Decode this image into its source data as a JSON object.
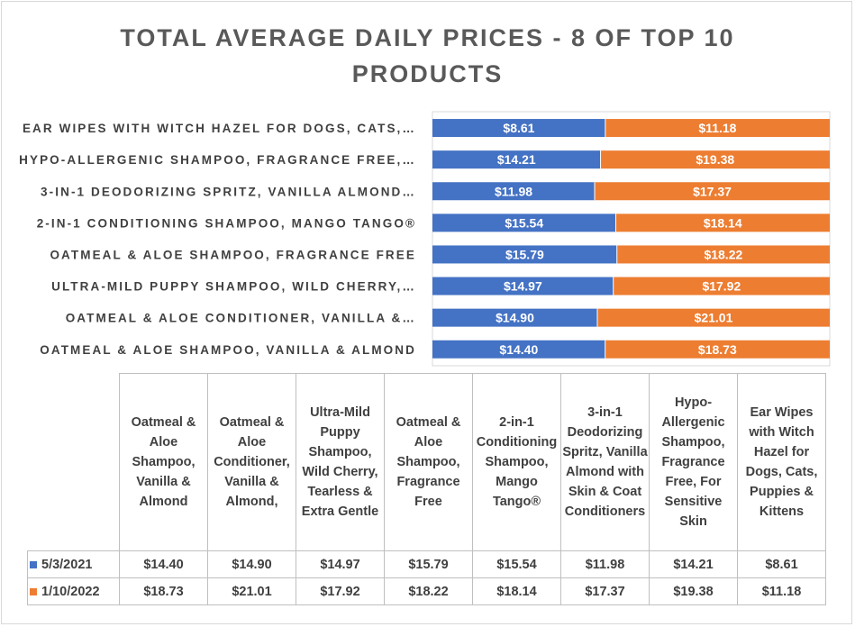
{
  "chart_data": {
    "type": "bar",
    "stacked": true,
    "orientation": "horizontal",
    "title": "TOTAL AVERAGE DAILY PRICES - 8 OF TOP 10 PRODUCTS",
    "axis_labels": [
      "EAR WIPES WITH WITCH HAZEL FOR DOGS, CATS,…",
      "HYPO-ALLERGENIC SHAMPOO, FRAGRANCE FREE,…",
      "3-IN-1 DEODORIZING SPRITZ, VANILLA ALMOND…",
      "2-IN-1 CONDITIONING SHAMPOO, MANGO TANGO®",
      "OATMEAL & ALOE SHAMPOO, FRAGRANCE FREE",
      "ULTRA-MILD PUPPY SHAMPOO, WILD CHERRY,…",
      "OATMEAL & ALOE CONDITIONER, VANILLA &…",
      "OATMEAL & ALOE SHAMPOO, VANILLA & ALMOND"
    ],
    "table_headers": [
      "Oatmeal & Aloe Shampoo, Vanilla & Almond",
      "Oatmeal & Aloe Conditioner, Vanilla & Almond,",
      "Ultra-Mild Puppy Shampoo, Wild Cherry, Tearless & Extra Gentle",
      "Oatmeal & Aloe Shampoo, Fragrance Free",
      "2-in-1 Conditioning Shampoo, Mango Tango®",
      "3-in-1 Deodorizing Spritz, Vanilla Almond with Skin & Coat Conditioners",
      "Hypo-Allergenic Shampoo, Fragrance Free, For Sensitive Skin",
      "Ear Wipes with Witch Hazel for Dogs, Cats, Puppies & Kittens"
    ],
    "series": [
      {
        "name": "5/3/2021",
        "color": "#4472c4",
        "values": [
          14.4,
          14.9,
          14.97,
          15.79,
          15.54,
          11.98,
          14.21,
          8.61
        ],
        "labels": [
          "$14.40",
          "$14.90",
          "$14.97",
          "$15.79",
          "$15.54",
          "$11.98",
          "$14.21",
          "$8.61"
        ]
      },
      {
        "name": "1/10/2022",
        "color": "#ed7d31",
        "values": [
          18.73,
          21.01,
          17.92,
          18.22,
          18.14,
          17.37,
          19.38,
          11.18
        ],
        "labels": [
          "$18.73",
          "$21.01",
          "$17.92",
          "$18.22",
          "$18.14",
          "$17.37",
          "$19.38",
          "$11.18"
        ]
      }
    ],
    "scale": "percent-stacked",
    "grid": false,
    "legend": "in data table"
  }
}
